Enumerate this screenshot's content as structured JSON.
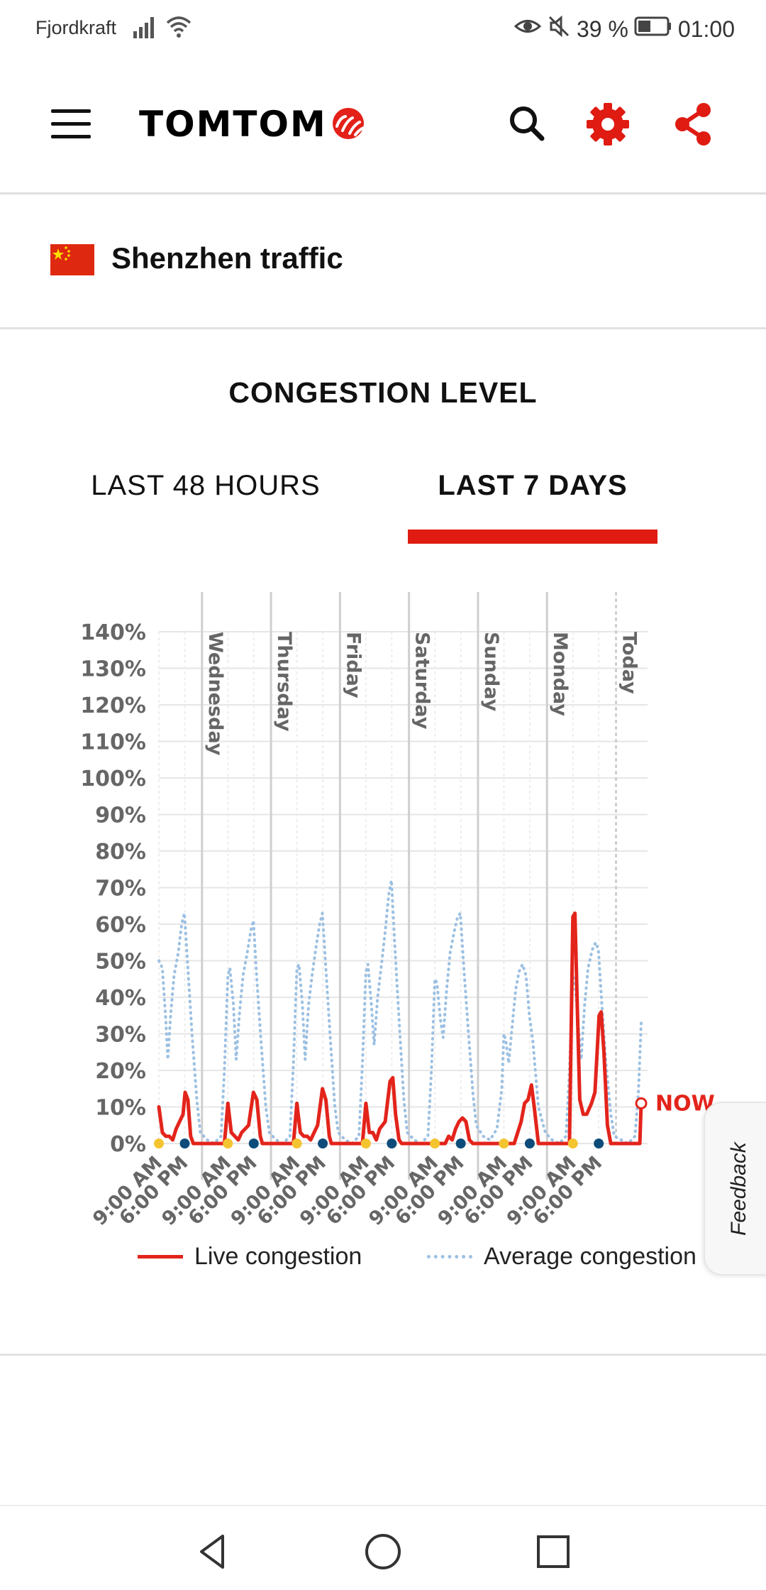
{
  "status_bar": {
    "carrier": "Fjordkraft",
    "battery": "39 %",
    "time": "01:00"
  },
  "app_bar": {
    "brand": "TOMTOM",
    "icons": [
      "menu-icon",
      "search-icon",
      "gear-icon",
      "share-icon"
    ],
    "accent_color": "#df1b12"
  },
  "city": {
    "name": "Shenzhen traffic"
  },
  "section": {
    "title": "CONGESTION LEVEL"
  },
  "tabs": [
    {
      "label": "LAST 48 HOURS",
      "selected": false
    },
    {
      "label": "LAST 7 DAYS",
      "selected": true
    }
  ],
  "chart_data": {
    "type": "line",
    "y_ticks": [
      "140%",
      "130%",
      "120%",
      "110%",
      "100%",
      "90%",
      "80%",
      "70%",
      "60%",
      "50%",
      "40%",
      "30%",
      "20%",
      "10%",
      "0%"
    ],
    "ylim": [
      0,
      140
    ],
    "xlim": [
      0,
      7
    ],
    "x_unit": "days since the start of the chart (day index)",
    "day_labels": [
      "Wednesday",
      "Thursday",
      "Friday",
      "Saturday",
      "Sunday",
      "Monday",
      "Today"
    ],
    "day_label_positions": [
      0.625,
      1.625,
      2.625,
      3.625,
      4.625,
      5.625,
      6.625
    ],
    "x_tick_labels": [
      "9:00 AM",
      "6:00 PM",
      "9:00 AM",
      "6:00 PM",
      "9:00 AM",
      "6:00 PM",
      "9:00 AM",
      "6:00 PM",
      "9:00 AM",
      "6:00 PM",
      "9:00 AM",
      "6:00 PM",
      "9:00 AM",
      "6:00 PM"
    ],
    "x_tick_positions": [
      0.0,
      0.375,
      1.0,
      1.375,
      2.0,
      2.375,
      3.0,
      3.375,
      4.0,
      4.375,
      5.0,
      5.375,
      6.0,
      6.375
    ],
    "marker_dots": [
      {
        "x": 0.0,
        "color": "#f4c430"
      },
      {
        "x": 0.375,
        "color": "#0d4c7a"
      },
      {
        "x": 1.0,
        "color": "#f4c430"
      },
      {
        "x": 1.375,
        "color": "#0d4c7a"
      },
      {
        "x": 2.0,
        "color": "#f4c430"
      },
      {
        "x": 2.375,
        "color": "#0d4c7a"
      },
      {
        "x": 3.0,
        "color": "#f4c430"
      },
      {
        "x": 3.375,
        "color": "#0d4c7a"
      },
      {
        "x": 4.0,
        "color": "#f4c430"
      },
      {
        "x": 4.375,
        "color": "#0d4c7a"
      },
      {
        "x": 5.0,
        "color": "#f4c430"
      },
      {
        "x": 5.375,
        "color": "#0d4c7a"
      },
      {
        "x": 6.0,
        "color": "#f4c430"
      },
      {
        "x": 6.375,
        "color": "#0d4c7a"
      }
    ],
    "now_label": "NOW",
    "now_value": {
      "x": 6.99,
      "y": 11
    },
    "grid": true,
    "legend_position": "bottom",
    "series": [
      {
        "name": "Live congestion",
        "color": "#e3241b",
        "style": "solid",
        "points": [
          [
            0.0,
            10
          ],
          [
            0.05,
            3
          ],
          [
            0.1,
            2
          ],
          [
            0.15,
            2
          ],
          [
            0.2,
            1
          ],
          [
            0.25,
            4
          ],
          [
            0.3,
            6
          ],
          [
            0.35,
            8
          ],
          [
            0.38,
            14
          ],
          [
            0.42,
            12
          ],
          [
            0.46,
            2
          ],
          [
            0.5,
            0
          ],
          [
            0.9,
            0
          ],
          [
            0.95,
            0
          ],
          [
            1.0,
            11
          ],
          [
            1.05,
            3
          ],
          [
            1.1,
            2
          ],
          [
            1.15,
            1
          ],
          [
            1.2,
            3
          ],
          [
            1.3,
            5
          ],
          [
            1.37,
            14
          ],
          [
            1.42,
            12
          ],
          [
            1.47,
            2
          ],
          [
            1.5,
            0
          ],
          [
            1.95,
            0
          ],
          [
            2.0,
            11
          ],
          [
            2.05,
            3
          ],
          [
            2.1,
            2
          ],
          [
            2.15,
            2
          ],
          [
            2.2,
            1
          ],
          [
            2.25,
            3
          ],
          [
            2.3,
            5
          ],
          [
            2.37,
            15
          ],
          [
            2.42,
            12
          ],
          [
            2.47,
            2
          ],
          [
            2.5,
            0
          ],
          [
            2.95,
            0
          ],
          [
            3.0,
            11
          ],
          [
            3.05,
            3
          ],
          [
            3.1,
            3
          ],
          [
            3.15,
            1
          ],
          [
            3.2,
            4
          ],
          [
            3.28,
            6
          ],
          [
            3.35,
            17
          ],
          [
            3.39,
            18
          ],
          [
            3.43,
            8
          ],
          [
            3.48,
            1
          ],
          [
            3.52,
            0
          ],
          [
            4.15,
            0
          ],
          [
            4.2,
            2
          ],
          [
            4.25,
            1
          ],
          [
            4.3,
            4
          ],
          [
            4.35,
            6
          ],
          [
            4.4,
            7
          ],
          [
            4.45,
            6
          ],
          [
            4.5,
            1
          ],
          [
            4.55,
            0
          ],
          [
            5.15,
            0
          ],
          [
            5.2,
            3
          ],
          [
            5.25,
            6
          ],
          [
            5.3,
            11
          ],
          [
            5.35,
            12
          ],
          [
            5.4,
            16
          ],
          [
            5.44,
            10
          ],
          [
            5.5,
            0
          ],
          [
            5.95,
            0
          ],
          [
            6.0,
            62
          ],
          [
            6.03,
            63
          ],
          [
            6.06,
            40
          ],
          [
            6.1,
            12
          ],
          [
            6.15,
            8
          ],
          [
            6.2,
            8
          ],
          [
            6.27,
            11
          ],
          [
            6.32,
            14
          ],
          [
            6.38,
            35
          ],
          [
            6.41,
            36
          ],
          [
            6.45,
            25
          ],
          [
            6.5,
            5
          ],
          [
            6.55,
            0
          ],
          [
            6.97,
            0
          ],
          [
            6.99,
            11
          ]
        ]
      },
      {
        "name": "Average congestion",
        "color": "#9cc0e2",
        "style": "dotted",
        "points": [
          [
            0.0,
            50
          ],
          [
            0.05,
            48
          ],
          [
            0.1,
            34
          ],
          [
            0.13,
            23
          ],
          [
            0.17,
            35
          ],
          [
            0.22,
            46
          ],
          [
            0.28,
            52
          ],
          [
            0.33,
            60
          ],
          [
            0.37,
            63
          ],
          [
            0.42,
            48
          ],
          [
            0.48,
            30
          ],
          [
            0.55,
            12
          ],
          [
            0.6,
            3
          ],
          [
            0.7,
            1
          ],
          [
            0.8,
            0
          ],
          [
            0.9,
            2
          ],
          [
            0.95,
            20
          ],
          [
            1.0,
            46
          ],
          [
            1.03,
            48
          ],
          [
            1.08,
            38
          ],
          [
            1.12,
            23
          ],
          [
            1.17,
            36
          ],
          [
            1.22,
            46
          ],
          [
            1.28,
            52
          ],
          [
            1.33,
            58
          ],
          [
            1.37,
            61
          ],
          [
            1.42,
            45
          ],
          [
            1.48,
            28
          ],
          [
            1.55,
            10
          ],
          [
            1.6,
            3
          ],
          [
            1.7,
            1
          ],
          [
            1.8,
            0
          ],
          [
            1.9,
            2
          ],
          [
            1.95,
            22
          ],
          [
            2.0,
            48
          ],
          [
            2.03,
            49
          ],
          [
            2.08,
            38
          ],
          [
            2.12,
            23
          ],
          [
            2.17,
            38
          ],
          [
            2.22,
            46
          ],
          [
            2.28,
            54
          ],
          [
            2.33,
            60
          ],
          [
            2.37,
            63
          ],
          [
            2.42,
            48
          ],
          [
            2.48,
            30
          ],
          [
            2.55,
            10
          ],
          [
            2.6,
            3
          ],
          [
            2.7,
            1
          ],
          [
            2.8,
            0
          ],
          [
            2.9,
            2
          ],
          [
            2.95,
            22
          ],
          [
            3.0,
            47
          ],
          [
            3.03,
            49
          ],
          [
            3.08,
            38
          ],
          [
            3.12,
            27
          ],
          [
            3.17,
            40
          ],
          [
            3.22,
            48
          ],
          [
            3.28,
            58
          ],
          [
            3.33,
            68
          ],
          [
            3.37,
            72
          ],
          [
            3.42,
            54
          ],
          [
            3.48,
            34
          ],
          [
            3.55,
            12
          ],
          [
            3.6,
            3
          ],
          [
            3.7,
            1
          ],
          [
            3.8,
            0
          ],
          [
            3.9,
            2
          ],
          [
            3.95,
            20
          ],
          [
            4.0,
            45
          ],
          [
            4.03,
            44
          ],
          [
            4.08,
            34
          ],
          [
            4.12,
            29
          ],
          [
            4.17,
            42
          ],
          [
            4.22,
            52
          ],
          [
            4.28,
            58
          ],
          [
            4.33,
            62
          ],
          [
            4.37,
            63
          ],
          [
            4.42,
            48
          ],
          [
            4.48,
            32
          ],
          [
            4.55,
            14
          ],
          [
            4.6,
            5
          ],
          [
            4.7,
            2
          ],
          [
            4.8,
            1
          ],
          [
            4.9,
            4
          ],
          [
            4.97,
            15
          ],
          [
            5.0,
            30
          ],
          [
            5.03,
            28
          ],
          [
            5.07,
            22
          ],
          [
            5.12,
            32
          ],
          [
            5.17,
            42
          ],
          [
            5.22,
            47
          ],
          [
            5.27,
            49
          ],
          [
            5.32,
            46
          ],
          [
            5.37,
            35
          ],
          [
            5.42,
            28
          ],
          [
            5.5,
            10
          ],
          [
            5.6,
            3
          ],
          [
            5.7,
            1
          ],
          [
            5.8,
            0
          ],
          [
            5.9,
            2
          ],
          [
            5.95,
            20
          ],
          [
            6.0,
            46
          ],
          [
            6.03,
            44
          ],
          [
            6.08,
            32
          ],
          [
            6.12,
            23
          ],
          [
            6.17,
            38
          ],
          [
            6.22,
            48
          ],
          [
            6.28,
            53
          ],
          [
            6.33,
            55
          ],
          [
            6.37,
            53
          ],
          [
            6.42,
            38
          ],
          [
            6.48,
            22
          ],
          [
            6.55,
            8
          ],
          [
            6.6,
            2
          ],
          [
            6.7,
            1
          ],
          [
            6.8,
            0
          ],
          [
            6.9,
            2
          ],
          [
            6.95,
            14
          ],
          [
            6.99,
            33
          ]
        ]
      }
    ]
  },
  "legend": {
    "live_label": "Live congestion",
    "avg_label": "Average congestion"
  },
  "feedback": {
    "label": "Feedback"
  },
  "nav_bar": {
    "icons": [
      "back-icon",
      "home-icon",
      "recents-icon"
    ]
  }
}
